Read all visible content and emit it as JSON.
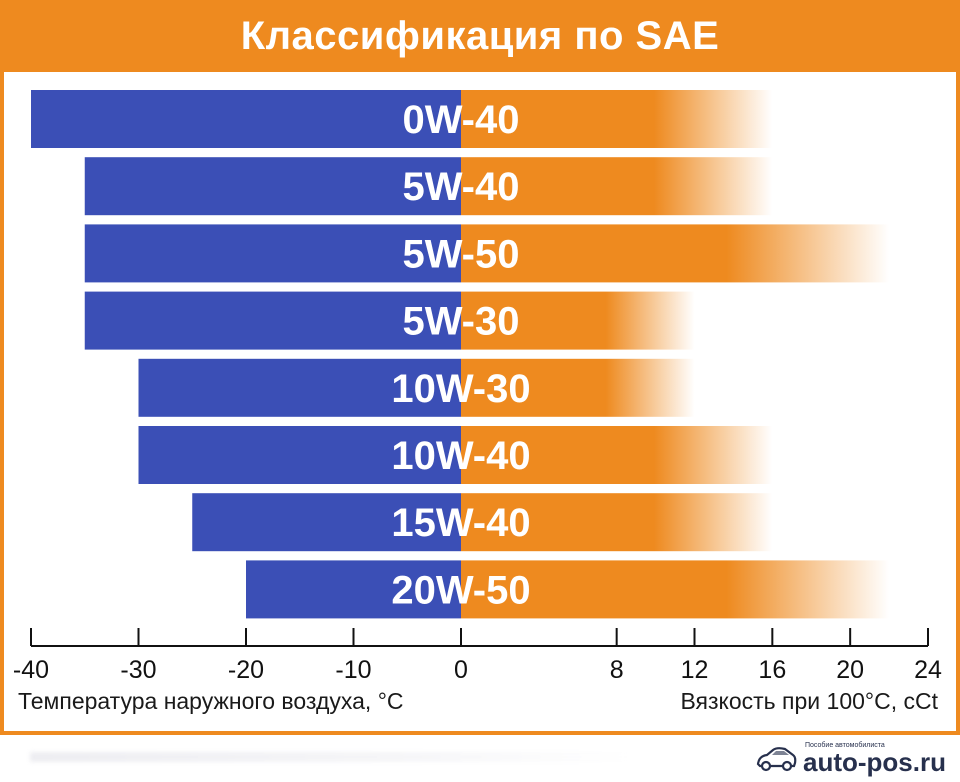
{
  "chart_data": {
    "type": "bar",
    "title": "Классификация по SAE",
    "categories": [
      "0W-40",
      "5W-40",
      "5W-50",
      "5W-30",
      "10W-30",
      "10W-40",
      "15W-40",
      "20W-50"
    ],
    "series": [
      {
        "values": [
          -40,
          -35,
          -35,
          -35,
          -30,
          -30,
          -25,
          -20
        ]
      },
      {
        "values": [
          16,
          16,
          22,
          12,
          12,
          16,
          16,
          22
        ]
      }
    ],
    "left_axis": {
      "label": "Температура наружного воздуха, °С",
      "range": [
        -40,
        0
      ],
      "ticks": [
        "-40",
        "-30",
        "-20",
        "-10",
        "0"
      ]
    },
    "right_axis": {
      "label": "Вязкость при 100°С, cCt",
      "range": [
        0,
        24
      ],
      "ticks": [
        "8",
        "12",
        "16",
        "20",
        "24"
      ]
    },
    "grid": false,
    "colors": {
      "left": "#3b4fb6",
      "right": "#ee8a1f",
      "title_bg": "#ee8a1f"
    }
  },
  "watermark": {
    "site": "auto-pos.ru",
    "tagline": "Пособие автомобилиста",
    "icon": "car-icon"
  }
}
